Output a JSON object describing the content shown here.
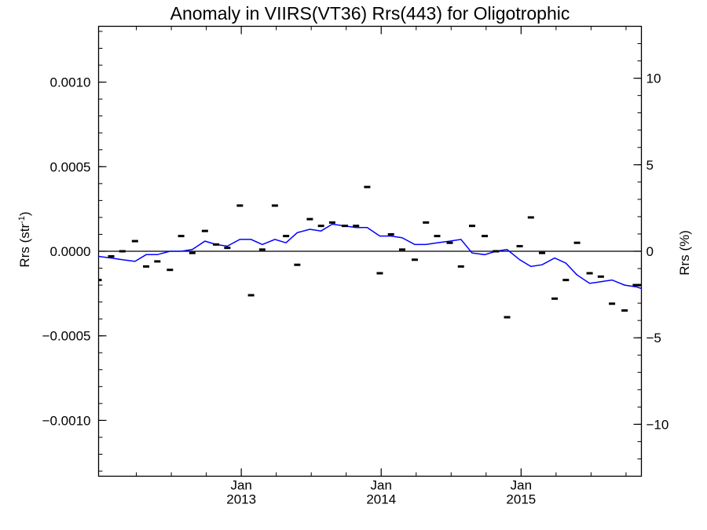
{
  "chart_data": {
    "type": "line",
    "title": "Anomaly in VIIRS(VT36) Rrs(443) for Oligotrophic",
    "ylabel": "Rrs (str",
    "ylabel_sup": "-1",
    "ylabel_close": ")",
    "y2label": "Rrs (%)",
    "ylim": [
      -0.00133,
      0.00133
    ],
    "y2lim": [
      -13,
      13
    ],
    "yticks": [
      0.001,
      0.0005,
      0.0,
      -0.0005,
      -0.001
    ],
    "yticklabels": [
      "0.0010",
      "0.0005",
      "0.0000",
      "−0.0005",
      "−0.0010"
    ],
    "y2ticks": [
      10,
      5,
      0,
      -5,
      -10
    ],
    "y2ticklabels": [
      "10",
      "5",
      "0",
      "−5",
      "−10"
    ],
    "xlim": [
      2011.98,
      2015.86
    ],
    "xticks": [
      {
        "x": 2013.0,
        "month": "Jan",
        "year": "2013"
      },
      {
        "x": 2014.0,
        "month": "Jan",
        "year": "2014"
      },
      {
        "x": 2015.0,
        "month": "Jan",
        "year": "2015"
      }
    ],
    "grid": false,
    "line_color": "#0000ff",
    "marker_color": "#000000",
    "series": [
      {
        "style": "markers",
        "x": [
          2011.98,
          2012.07,
          2012.15,
          2012.24,
          2012.32,
          2012.4,
          2012.49,
          2012.57,
          2012.65,
          2012.74,
          2012.82,
          2012.9,
          2012.99,
          2013.07,
          2013.15,
          2013.24,
          2013.32,
          2013.4,
          2013.49,
          2013.57,
          2013.65,
          2013.74,
          2013.82,
          2013.9,
          2013.99,
          2014.07,
          2014.15,
          2014.24,
          2014.32,
          2014.4,
          2014.49,
          2014.57,
          2014.65,
          2014.74,
          2014.82,
          2014.9,
          2014.99,
          2015.07,
          2015.15,
          2015.24,
          2015.32,
          2015.4,
          2015.49,
          2015.57,
          2015.65,
          2015.74,
          2015.82,
          2015.86
        ],
        "y": [
          -0.00017,
          -3e-05,
          0.0,
          6e-05,
          -9e-05,
          -6e-05,
          -0.00011,
          9e-05,
          -1e-05,
          0.00012,
          4e-05,
          2e-05,
          0.00027,
          -0.00026,
          1e-05,
          0.00027,
          9e-05,
          -8e-05,
          0.00019,
          0.00015,
          0.00017,
          0.00015,
          0.00015,
          0.00038,
          -0.00013,
          0.0001,
          1e-05,
          -5e-05,
          0.00017,
          9e-05,
          5e-05,
          -9e-05,
          0.00015,
          9e-05,
          0.0,
          -0.00039,
          3e-05,
          0.0002,
          -1e-05,
          -0.00028,
          -0.00017,
          5e-05,
          -0.00013,
          -0.00015,
          -0.00031,
          -0.00035,
          -0.0002,
          -0.0002
        ]
      },
      {
        "style": "line",
        "x": [
          2011.98,
          2012.07,
          2012.15,
          2012.24,
          2012.32,
          2012.4,
          2012.49,
          2012.57,
          2012.65,
          2012.74,
          2012.82,
          2012.9,
          2012.99,
          2013.07,
          2013.15,
          2013.24,
          2013.32,
          2013.4,
          2013.49,
          2013.57,
          2013.65,
          2013.74,
          2013.82,
          2013.9,
          2013.99,
          2014.07,
          2014.15,
          2014.24,
          2014.32,
          2014.4,
          2014.49,
          2014.57,
          2014.65,
          2014.74,
          2014.82,
          2014.9,
          2014.99,
          2015.07,
          2015.15,
          2015.24,
          2015.32,
          2015.4,
          2015.49,
          2015.57,
          2015.65,
          2015.74,
          2015.82,
          2015.86
        ],
        "y": [
          -3e-05,
          -4e-05,
          -5e-05,
          -6e-05,
          -2e-05,
          -2e-05,
          0.0,
          0.0,
          1e-05,
          6e-05,
          4e-05,
          3e-05,
          7e-05,
          7e-05,
          4e-05,
          7e-05,
          5e-05,
          0.00011,
          0.00013,
          0.00012,
          0.00016,
          0.00015,
          0.00014,
          0.00014,
          9e-05,
          9e-05,
          8e-05,
          4e-05,
          4e-05,
          5e-05,
          6e-05,
          7e-05,
          -1e-05,
          -2e-05,
          0.0,
          1e-05,
          -5e-05,
          -9e-05,
          -8e-05,
          -4e-05,
          -7e-05,
          -0.00014,
          -0.00019,
          -0.00018,
          -0.00017,
          -0.0002,
          -0.00021,
          -0.00022
        ]
      }
    ]
  }
}
